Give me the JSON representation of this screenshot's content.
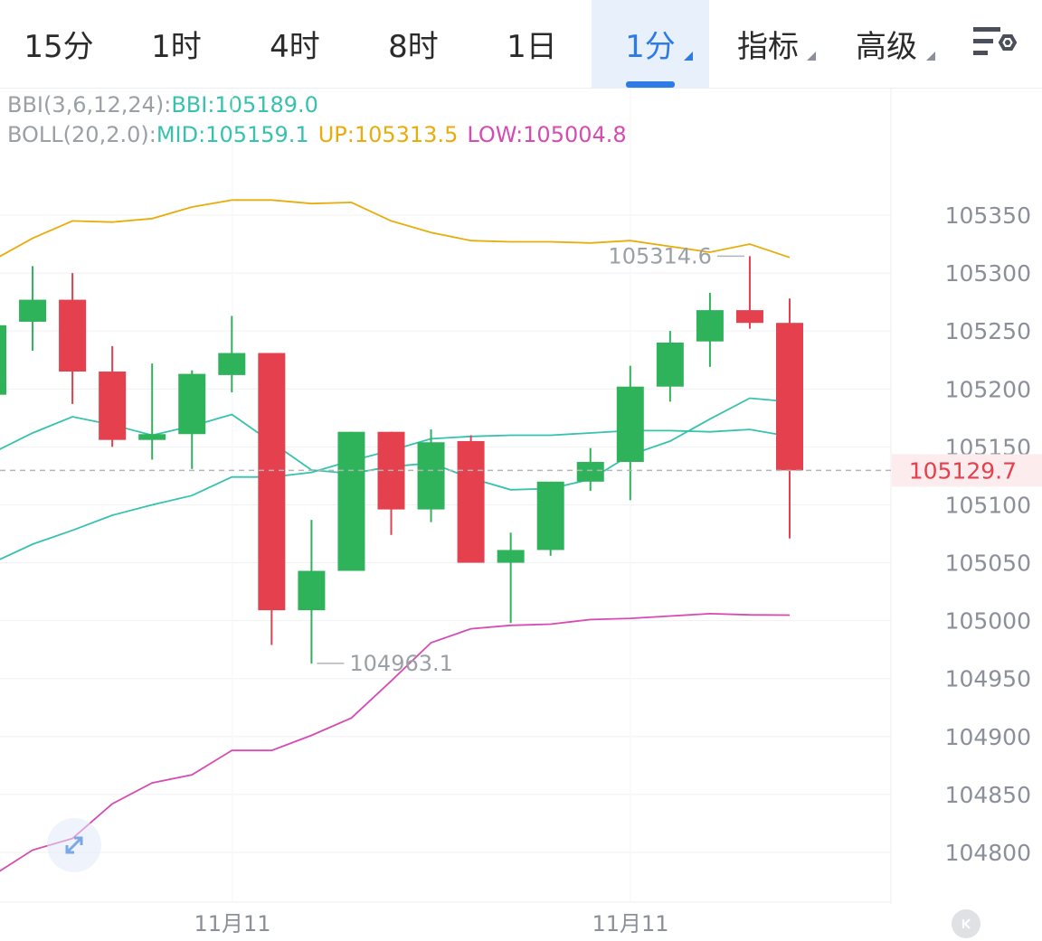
{
  "toolbar": {
    "tabs": [
      {
        "label": "15分"
      },
      {
        "label": "1时"
      },
      {
        "label": "4时"
      },
      {
        "label": "8时"
      },
      {
        "label": "1日"
      },
      {
        "label": "1分"
      },
      {
        "label": "指标"
      },
      {
        "label": "高级"
      }
    ],
    "active_tab": "1分"
  },
  "legend": {
    "bbi": {
      "prefix": "BBI(3,6,12,24):",
      "value": "BBI:105189.0"
    },
    "boll": {
      "prefix": "BOLL(20,2.0):",
      "mid": "MID:105159.1",
      "up": "UP:105313.5",
      "low": "LOW:105004.8"
    }
  },
  "colors": {
    "up_candle": "#2eb35a",
    "down_candle": "#e5404e",
    "bbi": "#36c2ae",
    "mid": "#36c2ae",
    "up": "#e8ad0c",
    "low": "#d64bb3",
    "active": "#2f7be5",
    "price_line": "#b5b5b5",
    "price_label": "#e5404e"
  },
  "chart_data": {
    "type": "candlestick",
    "ylim": [
      104775,
      105380
    ],
    "yticks": [
      "105350",
      "105300",
      "105250",
      "105200",
      "105150",
      "105100",
      "105050",
      "105000",
      "104950",
      "104900",
      "104850",
      "104800"
    ],
    "xlabels": [
      "11月11",
      "11月11"
    ],
    "last_price": "105129.7",
    "high_annotation": "105314.6",
    "low_annotation": "104963.1",
    "candles": [
      {
        "open": 105195,
        "close": 105255,
        "high": 105262,
        "low": 105195
      },
      {
        "open": 105258,
        "close": 105277,
        "high": 105306,
        "low": 105233
      },
      {
        "open": 105277,
        "close": 105215,
        "high": 105300,
        "low": 105187
      },
      {
        "open": 105215,
        "close": 105156,
        "high": 105237,
        "low": 105150
      },
      {
        "open": 105156,
        "close": 105161,
        "high": 105222,
        "low": 105139
      },
      {
        "open": 105161,
        "close": 105213,
        "high": 105216,
        "low": 105131
      },
      {
        "open": 105212,
        "close": 105231,
        "high": 105263,
        "low": 105197
      },
      {
        "open": 105231,
        "close": 105009,
        "high": 105231,
        "low": 104979
      },
      {
        "open": 105009,
        "close": 105043,
        "high": 105087,
        "low": 104963
      },
      {
        "open": 105043,
        "close": 105163,
        "high": 105163,
        "low": 105043
      },
      {
        "open": 105163,
        "close": 105096,
        "high": 105163,
        "low": 105074
      },
      {
        "open": 105096,
        "close": 105154,
        "high": 105165,
        "low": 105085
      },
      {
        "open": 105155,
        "close": 105050,
        "high": 105160,
        "low": 105050
      },
      {
        "open": 105050,
        "close": 105061,
        "high": 105076,
        "low": 104998
      },
      {
        "open": 105061,
        "close": 105120,
        "high": 105120,
        "low": 105056
      },
      {
        "open": 105120,
        "close": 105137,
        "high": 105149,
        "low": 105112
      },
      {
        "open": 105137,
        "close": 105202,
        "high": 105220,
        "low": 105104
      },
      {
        "open": 105202,
        "close": 105240,
        "high": 105250,
        "low": 105189
      },
      {
        "open": 105241,
        "close": 105268,
        "high": 105283,
        "low": 105219
      },
      {
        "open": 105268,
        "close": 105257,
        "high": 105314.6,
        "low": 105252
      },
      {
        "open": 105257,
        "close": 105129.7,
        "high": 105278,
        "low": 105071
      }
    ],
    "series": [
      {
        "name": "BBI",
        "values": [
          105145,
          105162,
          105176,
          105169,
          105160,
          105168,
          105178,
          105154,
          105130,
          105127,
          105133,
          105136,
          105123,
          105113,
          105114,
          105122,
          105143,
          105155,
          105174,
          105192,
          105189
        ]
      },
      {
        "name": "MID",
        "values": [
          105050,
          105066,
          105078,
          105091,
          105100,
          105108,
          105124,
          105124,
          105128,
          105138,
          105147,
          105157,
          105159,
          105160,
          105160,
          105162,
          105164,
          105164,
          105163,
          105165,
          105159.1
        ]
      },
      {
        "name": "UP",
        "values": [
          105311,
          105330,
          105345,
          105344,
          105347,
          105357,
          105363,
          105363,
          105360,
          105361,
          105345,
          105335,
          105328,
          105327,
          105327,
          105326,
          105328,
          105323,
          105318,
          105325,
          105313.5
        ]
      },
      {
        "name": "LOW",
        "values": [
          104780,
          104802,
          104812,
          104842,
          104860,
          104867,
          104888,
          104888,
          104901,
          104916,
          104948,
          104981,
          104993,
          104996,
          104997,
          105001,
          105002,
          105004,
          105006,
          105005,
          105004.8
        ]
      }
    ]
  }
}
